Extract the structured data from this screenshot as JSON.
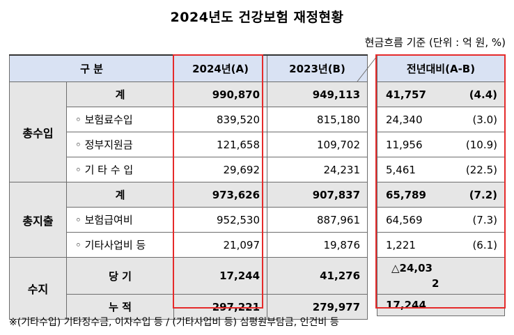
{
  "title": "2024년도 건강보험 재정현황",
  "unit_note": "현금흐름 기준 (단위 : 억 원, %)",
  "headers": {
    "category": "구 분",
    "y2024": "2024년(A)",
    "y2023": "2023년(B)",
    "diff": "전년대비(A-B)"
  },
  "sections": {
    "revenue": "총수입",
    "expense": "총지출",
    "balance": "수지"
  },
  "rows": {
    "rev_total": {
      "label": "계",
      "a": "990,870",
      "b": "949,113",
      "diff": "41,757",
      "pct": "(4.4)"
    },
    "rev_premium": {
      "label": "◦ 보험료수입",
      "a": "839,520",
      "b": "815,180",
      "diff": "24,340",
      "pct": "(3.0)"
    },
    "rev_gov": {
      "label": "◦ 정부지원금",
      "a": "121,658",
      "b": "109,702",
      "diff": "11,956",
      "pct": "(10.9)"
    },
    "rev_other": {
      "label": "◦ 기 타 수 입",
      "a": "29,692",
      "b": "24,231",
      "diff": "5,461",
      "pct": "(22.5)"
    },
    "exp_total": {
      "label": "계",
      "a": "973,626",
      "b": "907,837",
      "diff": "65,789",
      "pct": "(7.2)"
    },
    "exp_benefit": {
      "label": "◦ 보험급여비",
      "a": "952,530",
      "b": "887,961",
      "diff": "64,569",
      "pct": "(7.3)"
    },
    "exp_other": {
      "label": "◦ 기타사업비 등",
      "a": "21,097",
      "b": "19,876",
      "diff": "1,221",
      "pct": "(6.1)"
    },
    "bal_current": {
      "label": "당 기",
      "a": "17,244",
      "b": "41,276",
      "diff_line1": "△24,03",
      "diff_line2": "2"
    },
    "bal_cumulative": {
      "label": "누 적",
      "a": "297,221",
      "b": "279,977",
      "diff": "17,244"
    }
  },
  "footnote": "※(기타수입) 기타징수금, 이자수입 등 / (기타사업비 등) 심평원부담금, 인건비 등",
  "colors": {
    "header_bg": "#d9e2f3",
    "section_bg": "#d9d9d9",
    "total_bg": "#e6e6e6",
    "highlight": "#e52a2a"
  }
}
